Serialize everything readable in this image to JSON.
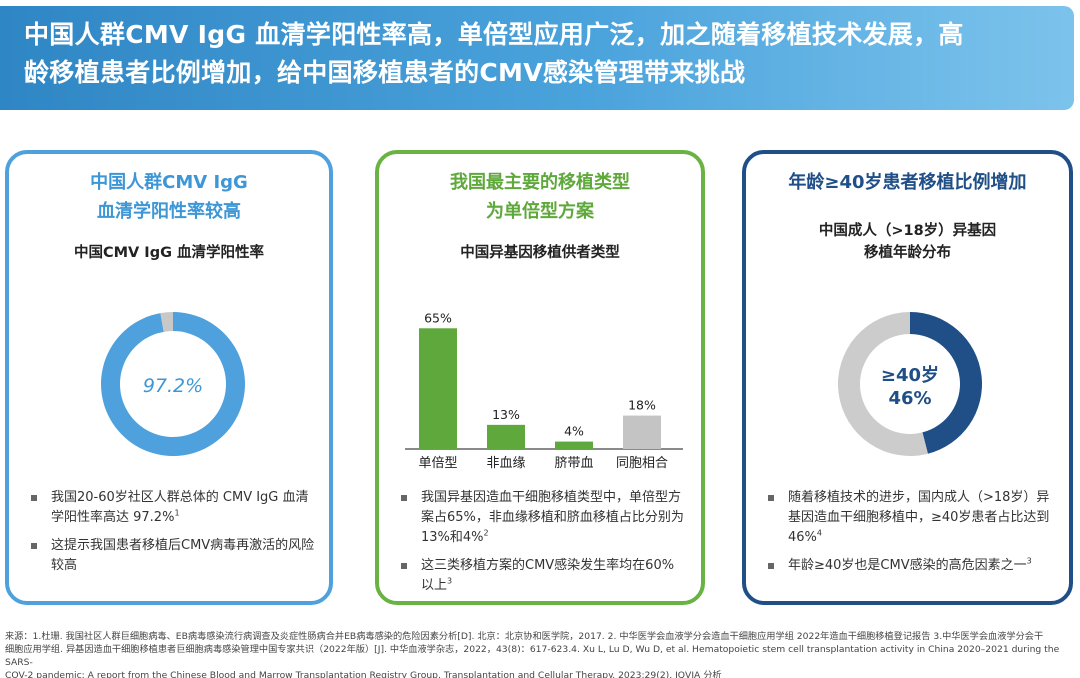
{
  "banner": {
    "line1": "中国人群CMV IgG 血清学阳性率高，单倍型应用广泛，加之随着移植技术发展，高",
    "line2": "龄移植患者比例增加，给中国移植患者的CMV感染管理带来挑战"
  },
  "panel1": {
    "head_line1": "中国人群CMV IgG",
    "head_line2": "血清学阳性率较高",
    "subtitle": "中国CMV IgG 血清学阳性率",
    "bullets": [
      {
        "text": "我国20-60岁社区人群总体的 CMV IgG 血清学阳性率高达 97.2%",
        "sup": "1"
      },
      {
        "text": "这提示我国患者移植后CMV病毒再激活的风险较高",
        "sup": ""
      }
    ]
  },
  "panel2": {
    "head_line1": "我国最主要的移植类型",
    "head_line2": "为单倍型方案",
    "subtitle": "中国异基因移植供者类型",
    "bullets": [
      {
        "text": "我国异基因造血干细胞移植类型中，单倍型方案占65%，非血缘移植和脐血移植占比分别为13%和4%",
        "sup": "2"
      },
      {
        "text": "这三类移植方案的CMV感染发生率均在60%以上",
        "sup": "3"
      }
    ]
  },
  "panel3": {
    "head_line1": "年龄≥40岁患者移植比例增加",
    "subtitle_line1": "中国成人（>18岁）异基因",
    "subtitle_line2": "移植年龄分布",
    "bullets": [
      {
        "text": "随着移植技术的进步，国内成人（>18岁）异基因造血干细胞移植中，≥40岁患者占比达到46%",
        "sup": "4"
      },
      {
        "text": "年龄≥40岁也是CMV感染的高危因素之一",
        "sup": "3"
      }
    ]
  },
  "chart_data": [
    {
      "type": "pie",
      "title": "中国CMV IgG 血清学阳性率",
      "slices": [
        {
          "label": "",
          "value": 97.2,
          "color": "#4ea1dc"
        },
        {
          "label": "",
          "value": 2.8,
          "color": "#c8c8c8"
        }
      ],
      "center_label": "97.2%"
    },
    {
      "type": "bar",
      "title": "中国异基因移植供者类型",
      "categories": [
        "单倍型",
        "非血缘",
        "脐带血",
        "同胞相合"
      ],
      "values": [
        65,
        13,
        4,
        18
      ],
      "value_labels": [
        "65%",
        "13%",
        "4%",
        "18%"
      ],
      "colors": [
        "#5fa83b",
        "#5fa83b",
        "#5fa83b",
        "#c4c4c4"
      ],
      "ylim": [
        0,
        70
      ]
    },
    {
      "type": "pie",
      "title": "中国成人（>18岁）异基因移植年龄分布",
      "slices": [
        {
          "label": "≥40岁",
          "value": 46,
          "color": "#1f4f86"
        },
        {
          "label": "",
          "value": 54,
          "color": "#cccccc"
        }
      ],
      "center_label_line1": "≥40岁",
      "center_label_line2": "46%"
    }
  ],
  "footer": {
    "line1": "来源：1.杜珊. 我国社区人群巨细胞病毒、EB病毒感染流行病调查及炎症性肠病合并EB病毒感染的危险因素分析[D]. 北京：北京协和医学院，2017. 2. 中华医学会血液学分会造血干细胞应用学组 2022年造血干细胞移植登记报告 3.中华医学会血液学分会干",
    "line2": "细胞应用学组. 异基因造血干细胞移植患者巨细胞病毒感染管理中国专家共识（2022年版）[J]. 中华血液学杂志，2022，43(8)：617-623.4. Xu L, Lu D, Wu D, et al. Hematopoietic stem cell transplantation activity in China 2020–2021 during the SARS-",
    "line3": "COV-2 pandemic: A report from the Chinese Blood and Marrow Transplantation Registry Group. Transplantation and Cellular Therapy. 2023;29(2). IQVIA 分析"
  }
}
